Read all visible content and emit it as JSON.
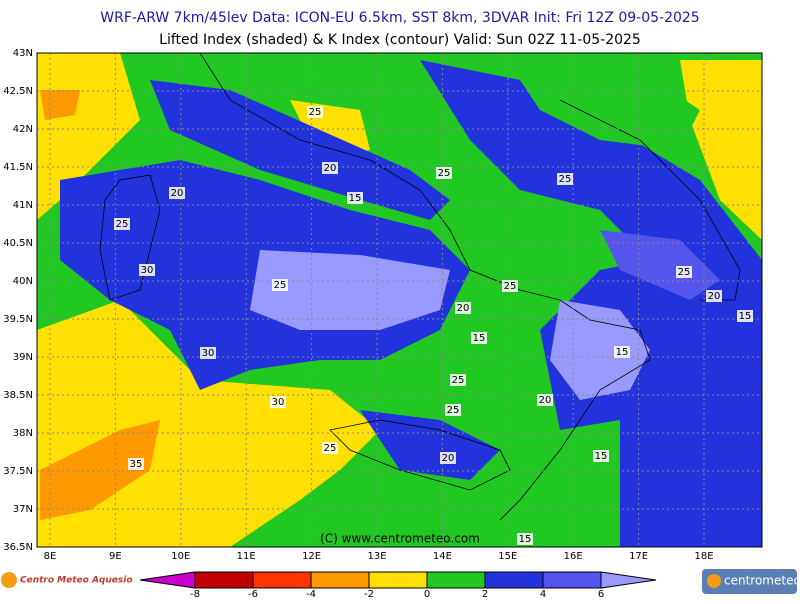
{
  "header": {
    "line1": "WRF-ARW 7km/45lev   Data: ICON-EU 6.5km, SST 8km, 3DVAR   Init: Fri 12Z 09-05-2025",
    "line2": "Lifted Index (shaded) & K Index (contour)  Valid: Sun 02Z 11-05-2025"
  },
  "lat_labels": [
    "43N",
    "42.5N",
    "42N",
    "41.5N",
    "41N",
    "40.5N",
    "40N",
    "39.5N",
    "39N",
    "38.5N",
    "38N",
    "37.5N",
    "37N",
    "36.5N"
  ],
  "lon_labels": [
    "8E",
    "9E",
    "10E",
    "11E",
    "12E",
    "13E",
    "14E",
    "15E",
    "16E",
    "17E",
    "18E"
  ],
  "contour_labels": [
    "25",
    "20",
    "15",
    "20",
    "25",
    "30",
    "25",
    "25",
    "25",
    "25",
    "20",
    "15",
    "30",
    "25",
    "20",
    "15",
    "15",
    "25",
    "20",
    "30",
    "25",
    "25",
    "20",
    "15",
    "35",
    "15"
  ],
  "copyright": "(C) www.centrometeo.com",
  "colorbar": {
    "ticks": [
      -8,
      -6,
      -4,
      -2,
      0,
      2,
      4,
      6
    ],
    "colors": [
      "#cc00cc",
      "#c00000",
      "#ff3300",
      "#ff9900",
      "#ffe000",
      "#22c822",
      "#2233dd",
      "#5555ee",
      "#9999ff"
    ]
  },
  "footer": {
    "left_logo": "Centro Meteo Aquesio",
    "right_logo": "centrometeo"
  }
}
